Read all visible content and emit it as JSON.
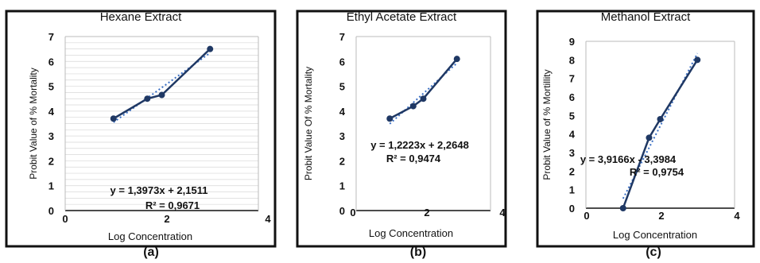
{
  "chart_data": [
    {
      "type": "scatter",
      "panel_label": "(a)",
      "title": "Hexane Extract",
      "xlabel": "Log Concentration",
      "ylabel": "Probit Value of % Mortality",
      "xlim": [
        0,
        4
      ],
      "ylim": [
        0,
        7
      ],
      "xticks": [
        "0",
        "2",
        "4"
      ],
      "yticks": [
        "0",
        "1",
        "2",
        "3",
        "4",
        "5",
        "6",
        "7"
      ],
      "grid": true,
      "points": {
        "x": [
          1.0,
          1.7,
          2.0,
          3.0
        ],
        "y": [
          3.7,
          4.5,
          4.65,
          6.5
        ]
      },
      "trendline": {
        "slope": 1.3973,
        "intercept": 2.1511,
        "x_range": [
          1.0,
          3.0
        ]
      },
      "equation": "y = 1,3973x + 2,1511",
      "r_squared": "R² = 0,9671",
      "colors": {
        "series": "#1f3864"
      }
    },
    {
      "type": "scatter",
      "panel_label": "(b)",
      "title": "Ethyl Acetate Extract",
      "xlabel": "Log Concentration",
      "ylabel": "Probit Value Of % Mortality",
      "xlim": [
        0,
        4
      ],
      "ylim": [
        0,
        7
      ],
      "xticks": [
        "0",
        "2",
        "4"
      ],
      "yticks": [
        "0",
        "1",
        "2",
        "3",
        "4",
        "5",
        "6",
        "7"
      ],
      "grid": false,
      "points": {
        "x": [
          1.0,
          1.7,
          2.0,
          3.0
        ],
        "y": [
          3.7,
          4.2,
          4.5,
          6.1
        ]
      },
      "trendline": {
        "slope": 1.2223,
        "intercept": 2.2648,
        "x_range": [
          1.0,
          3.0
        ]
      },
      "equation": "y = 1,2223x + 2,2648",
      "r_squared": "R² = 0,9474",
      "colors": {
        "series": "#1f3864"
      }
    },
    {
      "type": "scatter",
      "panel_label": "(c)",
      "title": "Methanol Extract",
      "xlabel": "Log Concentration",
      "ylabel": "Probit Value of % Mortillity",
      "xlim": [
        0,
        4
      ],
      "ylim": [
        0,
        9
      ],
      "xticks": [
        "0",
        "2",
        "4"
      ],
      "yticks": [
        "0",
        "1",
        "2",
        "3",
        "4",
        "5",
        "6",
        "7",
        "8",
        "9"
      ],
      "grid": false,
      "points": {
        "x": [
          1.0,
          1.7,
          2.0,
          3.0
        ],
        "y": [
          0.0,
          3.8,
          4.8,
          8.0
        ]
      },
      "trendline": {
        "slope": 3.9166,
        "intercept": -3.3984,
        "x_range": [
          1.0,
          3.0
        ]
      },
      "equation": "y = 3,9166x - 3,3984",
      "r_squared": "R² = 0,9754",
      "colors": {
        "series": "#1f3864"
      }
    }
  ]
}
